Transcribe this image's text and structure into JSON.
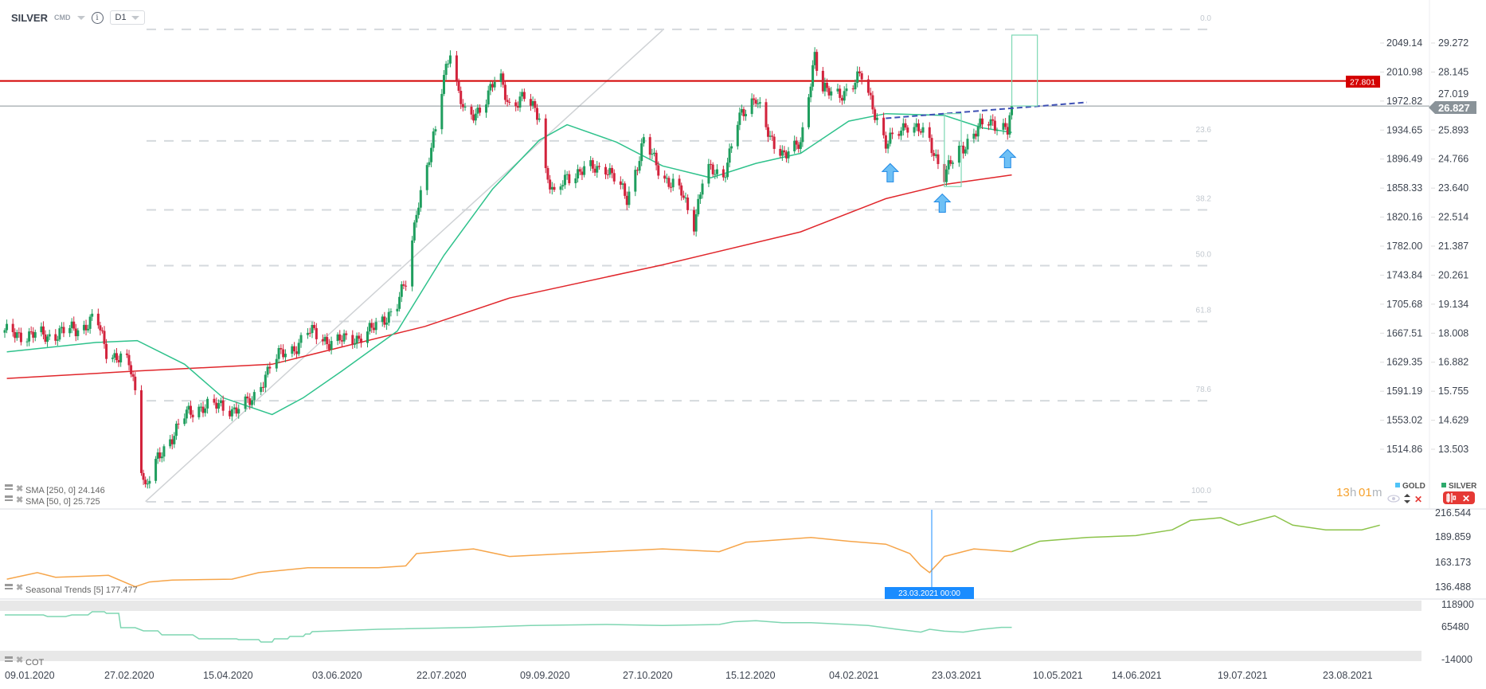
{
  "header": {
    "symbol": "SILVER",
    "market": "CMD",
    "info_icon": "info-icon",
    "timeframe": "D1"
  },
  "legend": {
    "gold_label": "GOLD",
    "silver_label": "SILVER",
    "gold_color": "#4fc3f7",
    "silver_color": "#2eaa6c",
    "countdown_hours": "13",
    "countdown_h": "h",
    "countdown_minutes": "01",
    "countdown_m": "m",
    "icons": [
      "eye-icon",
      "up-down-arrows-icon",
      "close-icon",
      "candlestick-icon"
    ]
  },
  "price_labels": {
    "resistance": "27.801",
    "last": "26.827",
    "hidden_tick": "27.019"
  },
  "indicators": {
    "sma250": "SMA  [250,  0]  24.146",
    "sma50": "SMA  [50,  0]  25.725",
    "seasonal": "Seasonal   Trends  [5]  177.477",
    "cot": "COT"
  },
  "crosshair_label": "23.03.2021 00:00",
  "colors": {
    "up": "#1f9e5e",
    "down": "#d2233c",
    "sma50": "#2fc28c",
    "sma250": "#e0262b",
    "resistance": "#d40000",
    "seasonal_past": "#f6a54a",
    "seasonal_future": "#8cc34a",
    "cot": "#7fd6b2",
    "crosshair": "#1a8cff"
  },
  "chart_data": [
    {
      "type": "candlestick",
      "series_name": "SILVER",
      "timeframe": "D1",
      "y_axis_gold": [
        "2049.14",
        "2010.98",
        "1972.82",
        "1934.65",
        "1896.49",
        "1858.33",
        "1820.16",
        "1782.00",
        "1743.84",
        "1705.68",
        "1667.51",
        "1629.35",
        "1591.19",
        "1553.02",
        "1514.86"
      ],
      "y_axis_silver": [
        "29.272",
        "28.145",
        "27.019",
        "25.893",
        "24.766",
        "23.640",
        "22.514",
        "21.387",
        "20.261",
        "19.134",
        "18.008",
        "16.882",
        "15.755",
        "14.629",
        "13.503"
      ],
      "x_ticks": [
        "09.01.2020",
        "27.02.2020",
        "15.04.2020",
        "03.06.2020",
        "22.07.2020",
        "09.09.2020",
        "27.10.2020",
        "15.12.2020",
        "04.02.2021",
        "23.03.2021",
        "10.05.2021",
        "14.06.2021",
        "19.07.2021",
        "23.08.2021"
      ],
      "approx_closes": [
        [
          "2020-01-10",
          18.0
        ],
        [
          "2020-01-30",
          17.9
        ],
        [
          "2020-02-17",
          18.27
        ],
        [
          "2020-02-23",
          18.6
        ],
        [
          "2020-02-28",
          17.35
        ],
        [
          "2020-03-06",
          16.98
        ],
        [
          "2020-03-10",
          16.8
        ],
        [
          "2020-03-14",
          15.5
        ],
        [
          "2020-03-16",
          12.94
        ],
        [
          "2020-03-18",
          12.0
        ],
        [
          "2020-03-21",
          12.58
        ],
        [
          "2020-03-28",
          13.68
        ],
        [
          "2020-04-06",
          14.78
        ],
        [
          "2020-04-15",
          15.22
        ],
        [
          "2020-04-28",
          15.07
        ],
        [
          "2020-05-07",
          15.33
        ],
        [
          "2020-05-16",
          16.98
        ],
        [
          "2020-05-25",
          17.35
        ],
        [
          "2020-06-01",
          18.09
        ],
        [
          "2020-06-10",
          17.72
        ],
        [
          "2020-06-21",
          17.72
        ],
        [
          "2020-07-04",
          18.27
        ],
        [
          "2020-07-13",
          19.19
        ],
        [
          "2020-07-18",
          20.1
        ],
        [
          "2020-07-22",
          22.86
        ],
        [
          "2020-07-26",
          24.15
        ],
        [
          "2020-07-31",
          25.8
        ],
        [
          "2020-08-04",
          28.0
        ],
        [
          "2020-08-07",
          29.1
        ],
        [
          "2020-08-11",
          27.27
        ],
        [
          "2020-08-15",
          26.17
        ],
        [
          "2020-08-22",
          26.9
        ],
        [
          "2020-08-30",
          28.0
        ],
        [
          "2020-09-04",
          26.9
        ],
        [
          "2020-09-11",
          27.1
        ],
        [
          "2020-09-18",
          26.53
        ],
        [
          "2020-09-21",
          24.33
        ],
        [
          "2020-09-25",
          23.23
        ],
        [
          "2020-10-01",
          24.15
        ],
        [
          "2020-10-10",
          24.33
        ],
        [
          "2020-10-19",
          24.5
        ],
        [
          "2020-10-29",
          23.23
        ],
        [
          "2020-11-06",
          25.43
        ],
        [
          "2020-11-15",
          24.15
        ],
        [
          "2020-11-24",
          23.41
        ],
        [
          "2020-11-30",
          22.31
        ],
        [
          "2020-12-05",
          24.33
        ],
        [
          "2020-12-14",
          24.15
        ],
        [
          "2020-12-21",
          26.17
        ],
        [
          "2020-12-30",
          27.27
        ],
        [
          "2021-01-06",
          25.43
        ],
        [
          "2021-01-12",
          25.06
        ],
        [
          "2021-01-21",
          25.25
        ],
        [
          "2021-01-28",
          28.92
        ],
        [
          "2021-01-31",
          27.45
        ],
        [
          "2021-02-06",
          27.27
        ],
        [
          "2021-02-13",
          27.45
        ],
        [
          "2021-02-19",
          28.0
        ],
        [
          "2021-02-24",
          26.9
        ],
        [
          "2021-03-02",
          25.25
        ],
        [
          "2021-03-11",
          26.17
        ],
        [
          "2021-03-18",
          25.8
        ],
        [
          "2021-03-22",
          25.43
        ],
        [
          "2021-03-29",
          24.15
        ],
        [
          "2021-04-05",
          25.06
        ],
        [
          "2021-04-12",
          25.8
        ],
        [
          "2021-04-18",
          26.17
        ],
        [
          "2021-04-25",
          26.17
        ],
        [
          "2021-04-28",
          25.87
        ],
        [
          "2021-04-30",
          26.83
        ]
      ],
      "sma250": [
        [
          "2020-01-10",
          16.25
        ],
        [
          "2020-03-14",
          16.54
        ],
        [
          "2020-05-16",
          16.8
        ],
        [
          "2020-07-26",
          18.27
        ],
        [
          "2020-09-04",
          19.37
        ],
        [
          "2020-11-15",
          20.66
        ],
        [
          "2021-01-21",
          21.94
        ],
        [
          "2021-03-02",
          23.23
        ],
        [
          "2021-03-29",
          23.78
        ],
        [
          "2021-04-30",
          24.15
        ]
      ],
      "sma50": [
        [
          "2020-01-10",
          17.28
        ],
        [
          "2020-02-23",
          17.65
        ],
        [
          "2020-03-14",
          17.72
        ],
        [
          "2020-04-06",
          16.8
        ],
        [
          "2020-04-24",
          15.5
        ],
        [
          "2020-05-16",
          14.85
        ],
        [
          "2020-05-30",
          15.5
        ],
        [
          "2020-06-17",
          16.54
        ],
        [
          "2020-07-13",
          18.09
        ],
        [
          "2020-08-04",
          21.03
        ],
        [
          "2020-08-27",
          23.6
        ],
        [
          "2020-09-18",
          25.5
        ],
        [
          "2020-10-01",
          26.1
        ],
        [
          "2020-10-24",
          25.43
        ],
        [
          "2020-11-15",
          24.5
        ],
        [
          "2020-12-08",
          24.04
        ],
        [
          "2020-12-30",
          24.6
        ],
        [
          "2021-01-21",
          24.99
        ],
        [
          "2021-02-13",
          26.24
        ],
        [
          "2021-03-02",
          26.53
        ],
        [
          "2021-03-29",
          26.46
        ],
        [
          "2021-04-16",
          25.98
        ],
        [
          "2021-04-30",
          25.8
        ]
      ],
      "resistance_level": 27.801,
      "last_price": 26.827,
      "fibonacci": {
        "high": 29.8,
        "low": 11.46,
        "levels": [
          "0.0",
          "23.6",
          "38.2",
          "50.0",
          "61.8",
          "78.6",
          "100.0"
        ]
      },
      "fib_trendline": [
        [
          "2020-03-18",
          11.47
        ],
        [
          "2020-11-15",
          29.77
        ]
      ],
      "dashed_trendline": [
        [
          "2021-03-02",
          26.35
        ],
        [
          "2021-06-03",
          26.97
        ]
      ],
      "boxes": [
        [
          [
            "2021-03-29",
            26.53
          ],
          [
            "2021-04-06",
            23.7
          ]
        ],
        [
          [
            "2021-04-30",
            29.58
          ],
          [
            "2021-05-12",
            26.83
          ]
        ]
      ],
      "arrows_up": [
        [
          "2021-03-04",
          24.22
        ],
        [
          "2021-03-28",
          23.04
        ],
        [
          "2021-04-28",
          24.77
        ]
      ]
    },
    {
      "type": "line",
      "series_name": "Seasonal Trends [5]",
      "y_axis": [
        "216.544",
        "189.859",
        "163.173",
        "136.488"
      ],
      "past": [
        [
          "2020-01-10",
          151.5
        ],
        [
          "2020-01-25",
          158
        ],
        [
          "2020-02-03",
          153.4
        ],
        [
          "2020-02-29",
          155.3
        ],
        [
          "2020-03-13",
          144
        ],
        [
          "2020-03-20",
          148.7
        ],
        [
          "2020-03-31",
          150.6
        ],
        [
          "2020-04-28",
          151.5
        ],
        [
          "2020-05-10",
          158
        ],
        [
          "2020-06-01",
          162.8
        ],
        [
          "2020-07-04",
          162.8
        ],
        [
          "2020-07-17",
          164.7
        ],
        [
          "2020-07-22",
          176.9
        ],
        [
          "2020-08-18",
          181.6
        ],
        [
          "2020-09-04",
          174.1
        ],
        [
          "2020-10-01",
          176.9
        ],
        [
          "2020-11-15",
          181.6
        ],
        [
          "2020-12-12",
          178.8
        ],
        [
          "2020-12-25",
          188.2
        ],
        [
          "2021-01-26",
          192.9
        ],
        [
          "2021-02-13",
          189.2
        ],
        [
          "2021-03-02",
          186.3
        ],
        [
          "2021-03-13",
          176.9
        ],
        [
          "2021-03-18",
          164.7
        ],
        [
          "2021-03-22",
          158
        ],
        [
          "2021-03-29",
          174.1
        ],
        [
          "2021-04-12",
          181.6
        ],
        [
          "2021-04-30",
          178.8
        ]
      ],
      "future": [
        [
          "2021-04-30",
          178.8
        ],
        [
          "2021-05-13",
          189.2
        ],
        [
          "2021-06-03",
          192.9
        ],
        [
          "2021-06-22",
          194.8
        ],
        [
          "2021-07-04",
          200.5
        ],
        [
          "2021-07-10",
          209.9
        ],
        [
          "2021-07-20",
          212.7
        ],
        [
          "2021-07-26",
          205.2
        ],
        [
          "2021-08-07",
          214.6
        ],
        [
          "2021-08-13",
          205.2
        ],
        [
          "2021-08-24",
          200.5
        ],
        [
          "2021-09-05",
          200.5
        ],
        [
          "2021-09-11",
          205.2
        ]
      ]
    },
    {
      "type": "line",
      "series_name": "COT",
      "y_axis": [
        "118900",
        "65480",
        "-14000"
      ],
      "values": [
        [
          "2020-01-09",
          92300
        ],
        [
          "2020-01-28",
          92300
        ],
        [
          "2020-01-30",
          88500
        ],
        [
          "2020-02-08",
          88500
        ],
        [
          "2020-02-11",
          92300
        ],
        [
          "2020-02-19",
          92300
        ],
        [
          "2020-02-21",
          99900
        ],
        [
          "2020-02-27",
          99900
        ],
        [
          "2020-02-28",
          96100
        ],
        [
          "2020-03-05",
          96100
        ],
        [
          "2020-03-06",
          62000
        ],
        [
          "2020-03-13",
          62000
        ],
        [
          "2020-03-17",
          54400
        ],
        [
          "2020-03-24",
          54400
        ],
        [
          "2020-03-26",
          44900
        ],
        [
          "2020-04-10",
          44900
        ],
        [
          "2020-04-13",
          35400
        ],
        [
          "2020-04-30",
          35400
        ],
        [
          "2020-05-01",
          33500
        ],
        [
          "2020-05-10",
          33500
        ],
        [
          "2020-05-11",
          27800
        ],
        [
          "2020-05-16",
          27800
        ],
        [
          "2020-05-17",
          35400
        ],
        [
          "2020-05-23",
          35400
        ],
        [
          "2020-05-24",
          41100
        ],
        [
          "2020-05-30",
          41100
        ],
        [
          "2020-05-31",
          46800
        ],
        [
          "2020-06-02",
          46800
        ],
        [
          "2020-06-03",
          52500
        ],
        [
          "2020-07-04",
          58100
        ],
        [
          "2020-08-18",
          62700
        ],
        [
          "2020-09-14",
          67100
        ],
        [
          "2020-10-19",
          69600
        ],
        [
          "2020-11-15",
          67100
        ],
        [
          "2020-12-12",
          69600
        ],
        [
          "2020-12-19",
          76200
        ],
        [
          "2020-12-30",
          78500
        ],
        [
          "2021-01-12",
          73900
        ],
        [
          "2021-01-26",
          73900
        ],
        [
          "2021-02-13",
          69600
        ],
        [
          "2021-02-22",
          67100
        ],
        [
          "2021-03-07",
          58100
        ],
        [
          "2021-03-18",
          51300
        ],
        [
          "2021-03-22",
          58100
        ],
        [
          "2021-03-29",
          53600
        ],
        [
          "2021-04-07",
          51300
        ],
        [
          "2021-04-16",
          58100
        ],
        [
          "2021-04-25",
          62700
        ],
        [
          "2021-04-30",
          62700
        ]
      ]
    }
  ]
}
